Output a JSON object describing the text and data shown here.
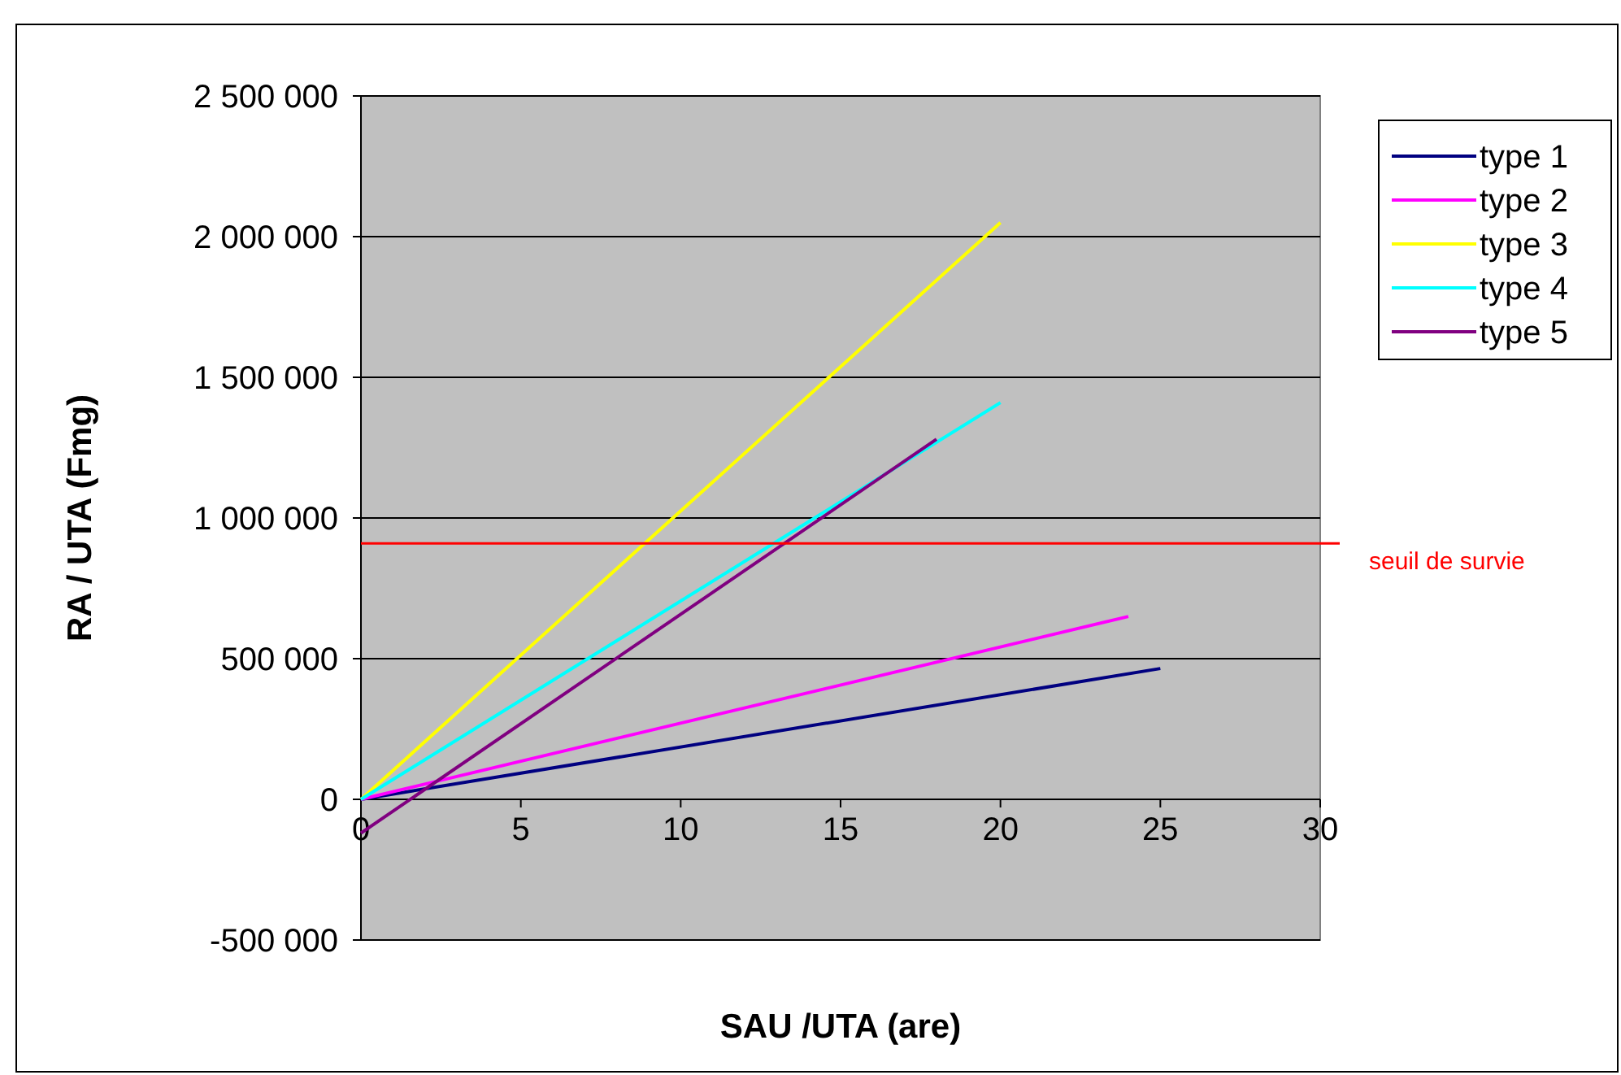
{
  "chart_data": {
    "type": "line",
    "xlabel": "SAU /UTA (are)",
    "ylabel": "RA / UTA (Fmg)",
    "xlim": [
      0,
      30
    ],
    "xticks": [
      0,
      5,
      10,
      15,
      20,
      25,
      30
    ],
    "ylim": [
      -500000,
      2500000
    ],
    "yticks": [
      {
        "value": -500000,
        "label": "-500 000"
      },
      0,
      {
        "value": 500000,
        "label": "500 000"
      },
      {
        "value": 1000000,
        "label": "1 000 000"
      },
      {
        "value": 1500000,
        "label": "1 500 000"
      },
      {
        "value": 2000000,
        "label": "2 000 000"
      },
      {
        "value": 2500000,
        "label": "2 500 000"
      }
    ],
    "grid": "y",
    "legend": "right",
    "marker": "none",
    "line_style": "solid",
    "series": [
      {
        "name": "type 1",
        "color": "#000080",
        "x": [
          0,
          25
        ],
        "values": [
          0,
          465000
        ]
      },
      {
        "name": "type 2",
        "color": "#ff00ff",
        "x": [
          0,
          24
        ],
        "values": [
          0,
          650000
        ]
      },
      {
        "name": "type 3",
        "color": "#ffff00",
        "x": [
          0,
          20
        ],
        "values": [
          0,
          2050000
        ]
      },
      {
        "name": "type 4",
        "color": "#00ffff",
        "x": [
          0,
          20
        ],
        "values": [
          0,
          1410000
        ]
      },
      {
        "name": "type 5",
        "color": "#800080",
        "x": [
          0,
          18
        ],
        "values": [
          -120000,
          1280000
        ]
      }
    ],
    "ref_lines": [
      {
        "axis": "y",
        "value": 910000,
        "label": "seuil de survie",
        "color": "#ff0000"
      }
    ]
  }
}
